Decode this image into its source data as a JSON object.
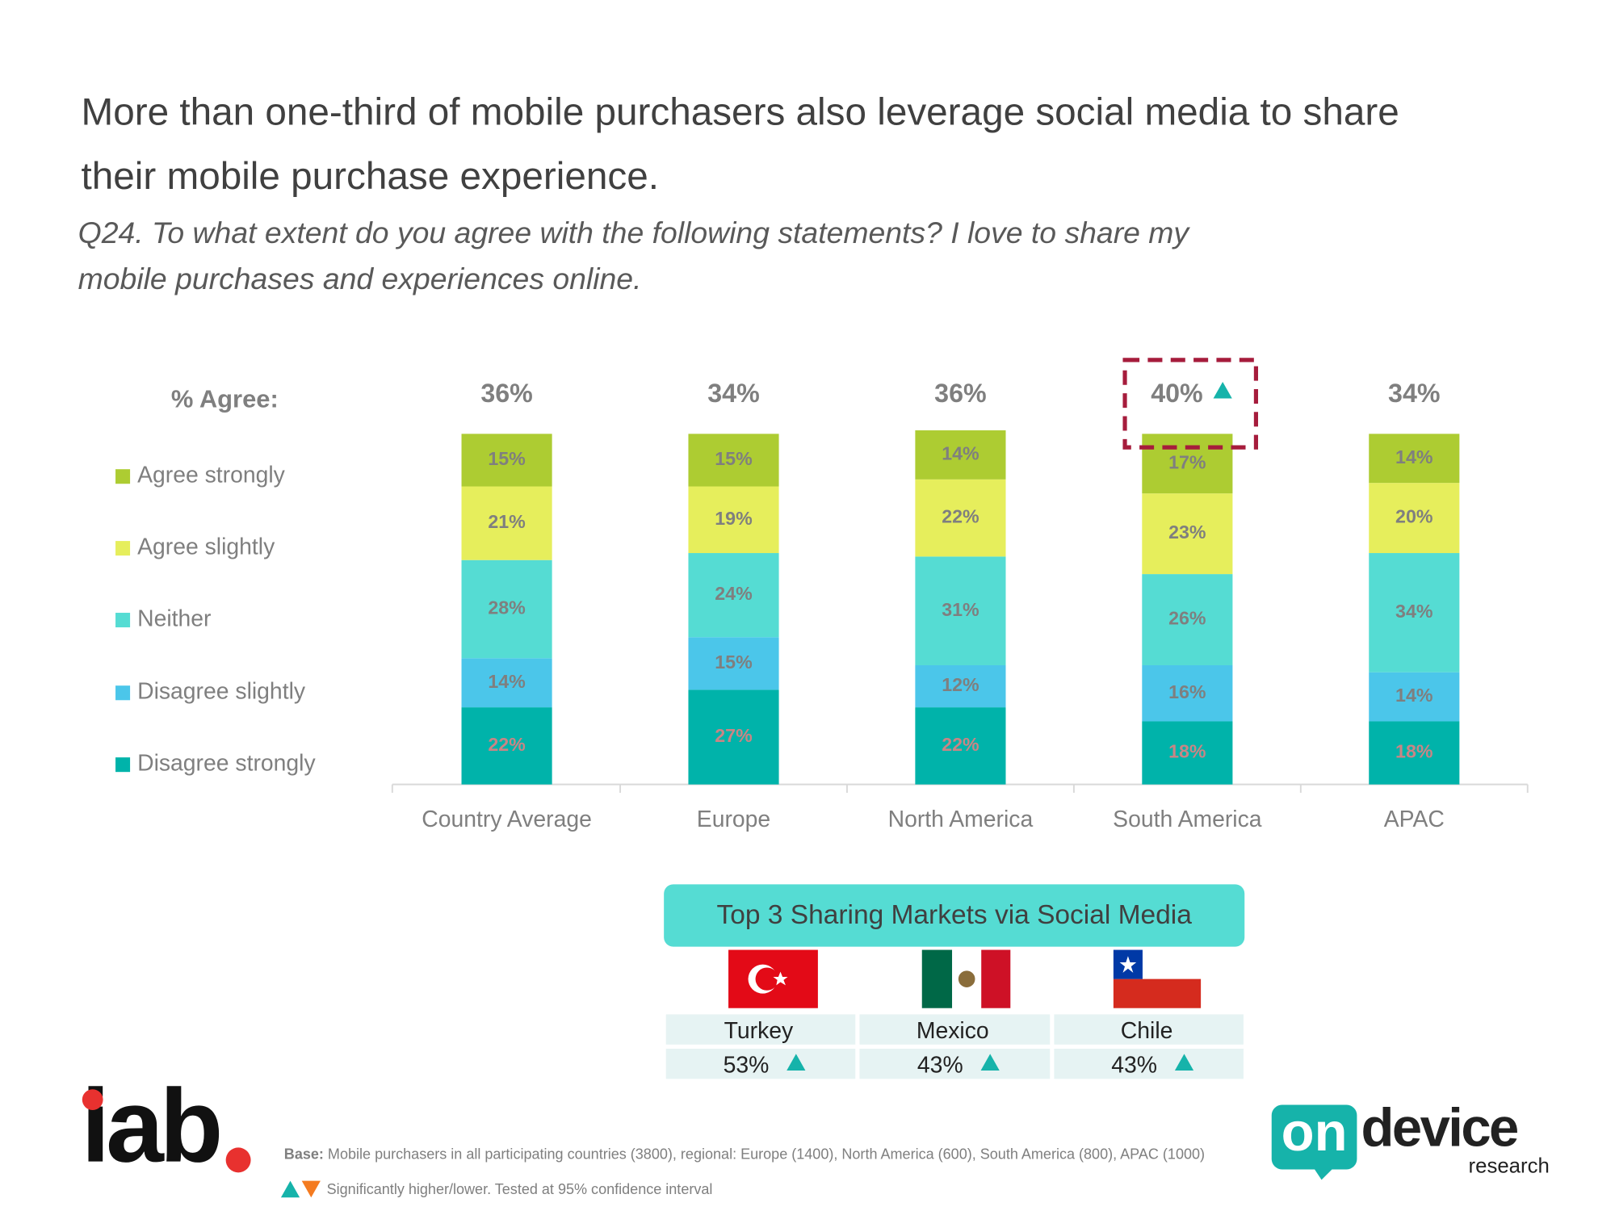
{
  "title": "More than one-third of mobile purchasers also leverage social media to share their mobile purchase experience.",
  "subtitle": "Q24. To what extent do you agree with the following statements? I love to share my mobile purchases and experiences online.",
  "chart_data": {
    "type": "stacked_bar",
    "categories": [
      "Country Average",
      "Europe",
      "North America",
      "South America",
      "APAC"
    ],
    "ylim": [
      0,
      100
    ],
    "series": [
      {
        "name": "Disagree strongly",
        "color": "#00b3aa",
        "values": [
          22,
          27,
          22,
          18,
          18
        ],
        "value_labels": [
          "22%",
          "27%",
          "22%",
          "18%",
          "18%"
        ]
      },
      {
        "name": "Disagree slightly",
        "color": "#4bc6ea",
        "values": [
          14,
          15,
          12,
          16,
          14
        ],
        "value_labels": [
          "14%",
          "15%",
          "12%",
          "16%",
          "14%"
        ]
      },
      {
        "name": "Neither",
        "color": "#55dcd3",
        "values": [
          28,
          24,
          31,
          26,
          34
        ],
        "value_labels": [
          "28%",
          "24%",
          "31%",
          "26%",
          "34%"
        ]
      },
      {
        "name": "Agree slightly",
        "color": "#e6ee5c",
        "values": [
          21,
          19,
          22,
          23,
          20
        ],
        "value_labels": [
          "21%",
          "19%",
          "22%",
          "23%",
          "20%"
        ]
      },
      {
        "name": "Agree strongly",
        "color": "#adcc32",
        "values": [
          15,
          15,
          14,
          17,
          14
        ],
        "value_labels": [
          "15%",
          "15%",
          "14%",
          "17%",
          "14%"
        ]
      }
    ],
    "agree": {
      "label": "% Agree:",
      "values": [
        36,
        34,
        36,
        40,
        34
      ],
      "value_labels": [
        "36%",
        "34%",
        "36%",
        "40%",
        "34%"
      ],
      "significant": [
        false,
        false,
        false,
        true,
        false
      ]
    }
  },
  "top_markets": {
    "title": "Top 3 Sharing Markets via Social Media",
    "markets": [
      {
        "name": "Turkey",
        "value": 53,
        "label": "53%"
      },
      {
        "name": "Mexico",
        "value": 43,
        "label": "43%"
      },
      {
        "name": "Chile",
        "value": 43,
        "label": "43%"
      }
    ]
  },
  "footer": {
    "base_label": "Base:",
    "base_text": "Mobile purchasers in all participating countries (3800), regional:  Europe (1400), North America (600), South America (800), APAC (1000)",
    "note": "Significantly higher/lower. Tested at 95% confidence interval"
  },
  "logos": {
    "iab": "iab",
    "on": "on",
    "device": "device",
    "research": "research"
  }
}
